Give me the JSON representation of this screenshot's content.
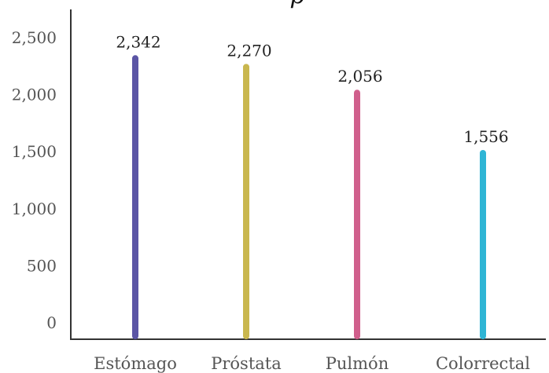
{
  "chart_data": {
    "type": "bar",
    "title": "p",
    "xlabel": "",
    "ylabel": "",
    "categories": [
      "Estómago",
      "Próstata",
      "Pulmón",
      "Colorrectal"
    ],
    "values": [
      2342,
      2270,
      2056,
      1556
    ],
    "value_labels": [
      "2,342",
      "2,270",
      "2,056",
      "1,556"
    ],
    "colors": [
      "#5b55a5",
      "#c9b74e",
      "#d05f8c",
      "#2fb5d5"
    ],
    "y_ticks": [
      0,
      500,
      1000,
      1500,
      2000,
      2500
    ],
    "y_tick_labels": [
      "0",
      "500",
      "1,000",
      "1,500",
      "2,000",
      "2,500"
    ],
    "ylim": [
      0,
      2500
    ],
    "grid": false,
    "legend": "none"
  }
}
